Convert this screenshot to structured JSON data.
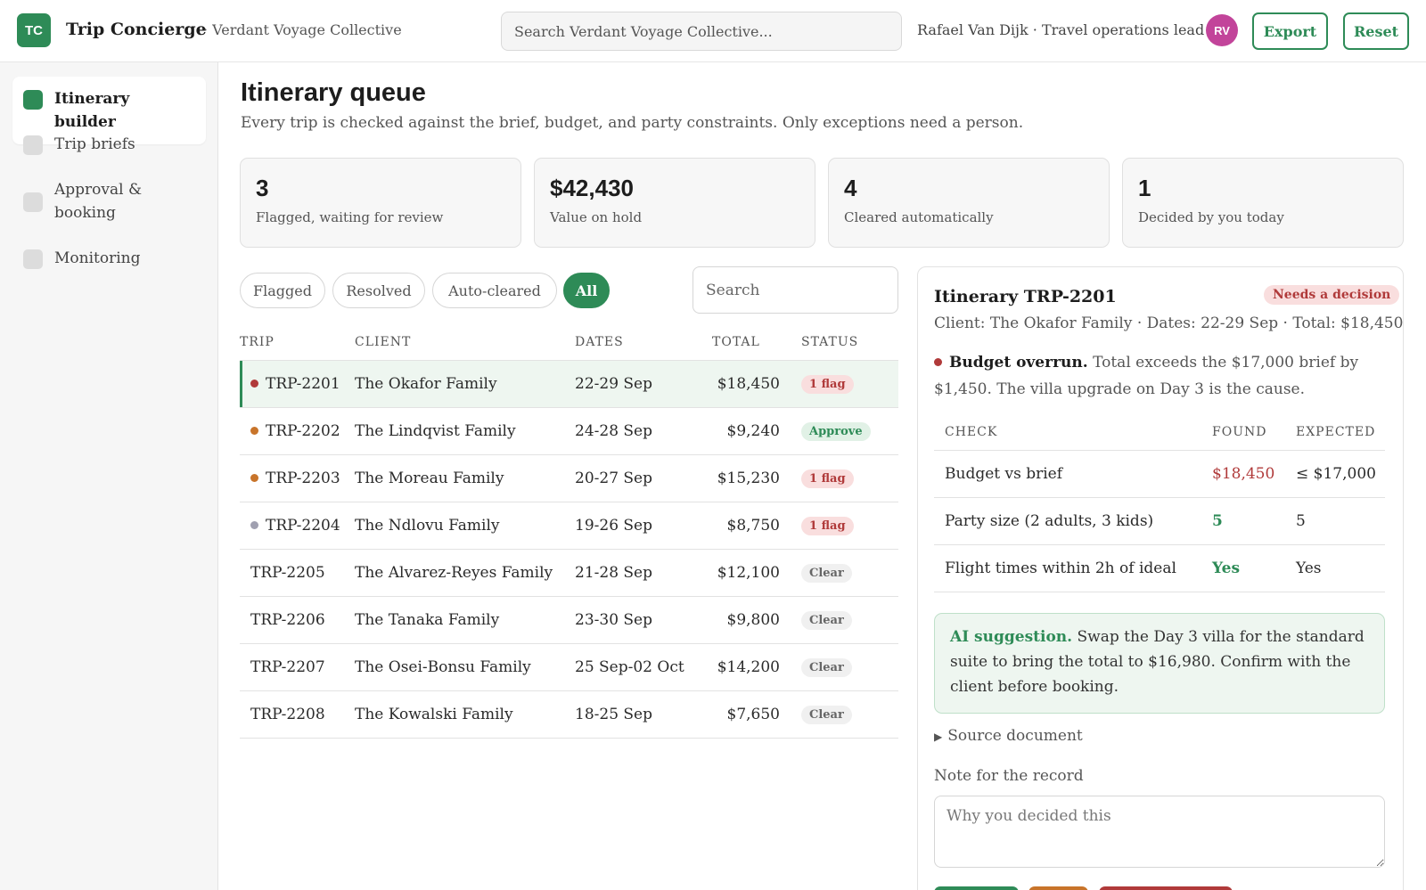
{
  "header": {
    "logo_initials": "TC",
    "app_title": "Trip Concierge",
    "org_name": "· Verdant Voyage Collective",
    "search_placeholder": "Search Verdant Voyage Collective...",
    "user_label": "Rafael Van Dijk · Travel operations lead",
    "avatar_initials": "RV",
    "export_label": "Export",
    "reset_label": "Reset"
  },
  "sidebar": {
    "items": [
      {
        "label": "Itinerary builder",
        "active": true
      },
      {
        "label": "Trip briefs",
        "active": false
      },
      {
        "label": "Approval & booking",
        "active": false
      },
      {
        "label": "Monitoring",
        "active": false
      }
    ]
  },
  "main": {
    "title": "Itinerary queue",
    "subtitle": "Every trip is checked against the brief, budget, and party constraints. Only exceptions need a person."
  },
  "stats": [
    {
      "value": "3",
      "label": "Flagged, waiting for review"
    },
    {
      "value": "$42,430",
      "label": "Value on hold"
    },
    {
      "value": "4",
      "label": "Cleared automatically"
    },
    {
      "value": "1",
      "label": "Decided by you today"
    }
  ],
  "filters": {
    "chips": [
      "Flagged",
      "Resolved",
      "Auto-cleared",
      "All"
    ],
    "active": "All",
    "search_placeholder": "Search"
  },
  "table": {
    "headers": [
      "TRIP",
      "CLIENT",
      "DATES",
      "TOTAL",
      "STATUS"
    ],
    "rows": [
      {
        "trip": "TRP-2201",
        "client": "The Okafor Family",
        "dates": "22-29 Sep",
        "total": "$18,450",
        "status": "1 flag",
        "status_kind": "flag",
        "dot": "red",
        "selected": true
      },
      {
        "trip": "TRP-2202",
        "client": "The Lindqvist Family",
        "dates": "24-28 Sep",
        "total": "$9,240",
        "status": "Approve",
        "status_kind": "approve",
        "dot": "orange",
        "selected": false
      },
      {
        "trip": "TRP-2203",
        "client": "The Moreau Family",
        "dates": "20-27 Sep",
        "total": "$15,230",
        "status": "1 flag",
        "status_kind": "flag",
        "dot": "orange",
        "selected": false
      },
      {
        "trip": "TRP-2204",
        "client": "The Ndlovu Family",
        "dates": "19-26 Sep",
        "total": "$8,750",
        "status": "1 flag",
        "status_kind": "flag",
        "dot": "gray",
        "selected": false
      },
      {
        "trip": "TRP-2205",
        "client": "The Alvarez-Reyes Family",
        "dates": "21-28 Sep",
        "total": "$12,100",
        "status": "Clear",
        "status_kind": "clear",
        "dot": null,
        "selected": false
      },
      {
        "trip": "TRP-2206",
        "client": "The Tanaka Family",
        "dates": "23-30 Sep",
        "total": "$9,800",
        "status": "Clear",
        "status_kind": "clear",
        "dot": null,
        "selected": false
      },
      {
        "trip": "TRP-2207",
        "client": "The Osei-Bonsu Family",
        "dates": "25 Sep-02 Oct",
        "total": "$14,200",
        "status": "Clear",
        "status_kind": "clear",
        "dot": null,
        "selected": false
      },
      {
        "trip": "TRP-2208",
        "client": "The Kowalski Family",
        "dates": "18-25 Sep",
        "total": "$7,650",
        "status": "Clear",
        "status_kind": "clear",
        "dot": null,
        "selected": false
      }
    ]
  },
  "detail": {
    "title": "Itinerary TRP-2201",
    "badge": "Needs a decision",
    "meta": "Client: The Okafor Family · Dates: 22-29 Sep · Total: $18,450",
    "issue_title": "Budget overrun.",
    "issue_text": "Total exceeds the $17,000 brief by $1,450. The villa upgrade on Day 3 is the cause.",
    "check_headers": [
      "CHECK",
      "FOUND",
      "EXPECTED"
    ],
    "checks": [
      {
        "check": "Budget vs brief",
        "found": "$18,450",
        "expected": "≤ $17,000",
        "found_kind": "bad"
      },
      {
        "check": "Party size (2 adults, 3 kids)",
        "found": "5",
        "expected": "5",
        "found_kind": "ok"
      },
      {
        "check": "Flight times within 2h of ideal",
        "found": "Yes",
        "expected": "Yes",
        "found_kind": "ok"
      }
    ],
    "ai_label": "AI suggestion.",
    "ai_text": "Swap the Day 3 villa for the standard suite to bring the total to $16,980. Confirm with the client before booking.",
    "source_label": "Source document",
    "note_label": "Note for the record",
    "note_placeholder": "Why you decided this"
  },
  "colors": {
    "brand_green": "#2e8b57",
    "flag_red": "#b03a3a",
    "dot_red": "#b03a3a",
    "dot_orange": "#c8742a",
    "dot_gray": "#a0a0b0",
    "avatar_pink": "#c2449a"
  },
  "icons": {
    "source_toggle": "▶"
  }
}
